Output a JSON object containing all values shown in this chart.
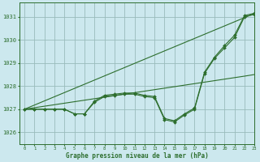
{
  "title": "Graphe pression niveau de la mer (hPa)",
  "bg_color": "#cce8ee",
  "grid_color": "#99bbbb",
  "line_color": "#2d6e2d",
  "xlim": [
    -0.5,
    23
  ],
  "ylim": [
    1025.5,
    1031.6
  ],
  "yticks": [
    1026,
    1027,
    1028,
    1029,
    1030,
    1031
  ],
  "xticks": [
    0,
    1,
    2,
    3,
    4,
    5,
    6,
    7,
    8,
    9,
    10,
    11,
    12,
    13,
    14,
    15,
    16,
    17,
    18,
    19,
    20,
    21,
    22,
    23
  ],
  "series": {
    "line_wavy1": [
      1027.0,
      1027.0,
      1027.0,
      1027.0,
      1027.0,
      1026.8,
      1026.8,
      1027.3,
      1027.55,
      1027.6,
      1027.65,
      1027.65,
      1027.55,
      1027.5,
      1026.55,
      1026.45,
      1026.75,
      1027.0,
      1028.55,
      1029.2,
      1029.65,
      1030.1,
      1031.0,
      1031.1
    ],
    "line_wavy2": [
      1027.0,
      1027.0,
      1027.0,
      1027.0,
      1027.0,
      1026.8,
      1026.8,
      1027.35,
      1027.6,
      1027.65,
      1027.7,
      1027.7,
      1027.6,
      1027.55,
      1026.6,
      1026.5,
      1026.8,
      1027.05,
      1028.6,
      1029.25,
      1029.75,
      1030.2,
      1031.05,
      1031.15
    ],
    "line_straight1": [
      1027.0,
      1027.065,
      1027.13,
      1027.195,
      1027.26,
      1027.325,
      1027.39,
      1027.455,
      1027.52,
      1027.585,
      1027.65,
      1027.715,
      1027.78,
      1027.845,
      1027.91,
      1027.975,
      1028.04,
      1028.105,
      1028.17,
      1028.235,
      1028.3,
      1028.365,
      1028.43,
      1028.5
    ],
    "line_straight2": [
      1027.0,
      1027.18,
      1027.36,
      1027.54,
      1027.72,
      1027.9,
      1028.08,
      1028.26,
      1028.44,
      1028.62,
      1028.8,
      1028.98,
      1029.16,
      1029.34,
      1029.52,
      1029.7,
      1029.88,
      1030.06,
      1030.24,
      1030.42,
      1030.6,
      1030.78,
      1030.96,
      1031.14
    ]
  }
}
